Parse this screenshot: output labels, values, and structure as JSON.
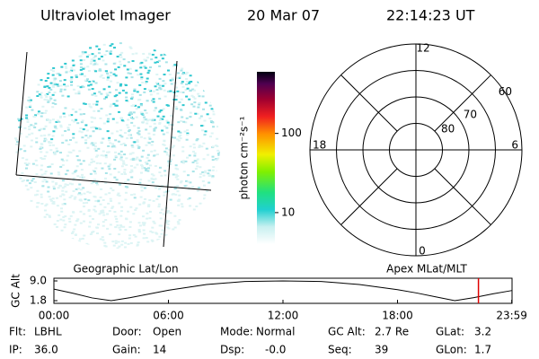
{
  "header": {
    "instrument": "Ultraviolet Imager",
    "date": "20 Mar 07",
    "time": "22:14:23 UT"
  },
  "colorbar": {
    "label": "photon cm⁻²s⁻¹",
    "lim": [
      4,
      600
    ],
    "log": true,
    "ticks": [
      10,
      100
    ]
  },
  "polar": {
    "lat_lim": [
      50,
      90
    ],
    "rings": [
      60,
      70,
      80
    ],
    "mlt_labels": {
      "top": "12",
      "left": "18",
      "right": "6",
      "bottom": "0"
    }
  },
  "timeline": {
    "left_label": "Geographic Lat/Lon",
    "right_label": "Apex MLat/MLT",
    "y_label": "GC Alt",
    "ylim": [
      1.8,
      9.0
    ],
    "yticks": [
      {
        "value": 9.0,
        "label": "9.0"
      },
      1.8
    ],
    "xlim": [
      0,
      24
    ],
    "xticks": [
      {
        "value": 0,
        "label": "00:00"
      },
      {
        "value": 6,
        "label": "06:00"
      },
      {
        "value": 12,
        "label": "12:00"
      },
      {
        "value": 18,
        "label": "18:00"
      },
      {
        "value": 23.983,
        "label": "23:59"
      }
    ],
    "x": [
      0,
      1,
      2,
      3,
      4,
      6,
      8,
      10,
      12,
      14,
      16,
      18,
      19,
      20,
      21,
      22,
      23,
      24
    ],
    "altitude": [
      6.0,
      4.5,
      2.8,
      1.8,
      2.9,
      5.6,
      7.7,
      8.8,
      9.0,
      8.8,
      7.7,
      5.8,
      4.6,
      3.2,
      1.8,
      2.9,
      4.3,
      5.5
    ],
    "current_time": 22.24,
    "marker_color": "#e00000"
  },
  "info": [
    [
      [
        "Flt:",
        "LBHL"
      ],
      [
        "Door:",
        "Open"
      ],
      [
        "Mode:",
        "Normal"
      ],
      [
        "GC Alt:",
        "2.7 Re"
      ],
      [
        "GLat:",
        "3.2"
      ]
    ],
    [
      [
        "IP:",
        "36.0"
      ],
      [
        "Gain:",
        "14"
      ],
      [
        "Dsp:",
        "-0.0"
      ],
      [
        "Seq:",
        "39"
      ],
      [
        "GLon:",
        "1.7"
      ]
    ]
  ]
}
